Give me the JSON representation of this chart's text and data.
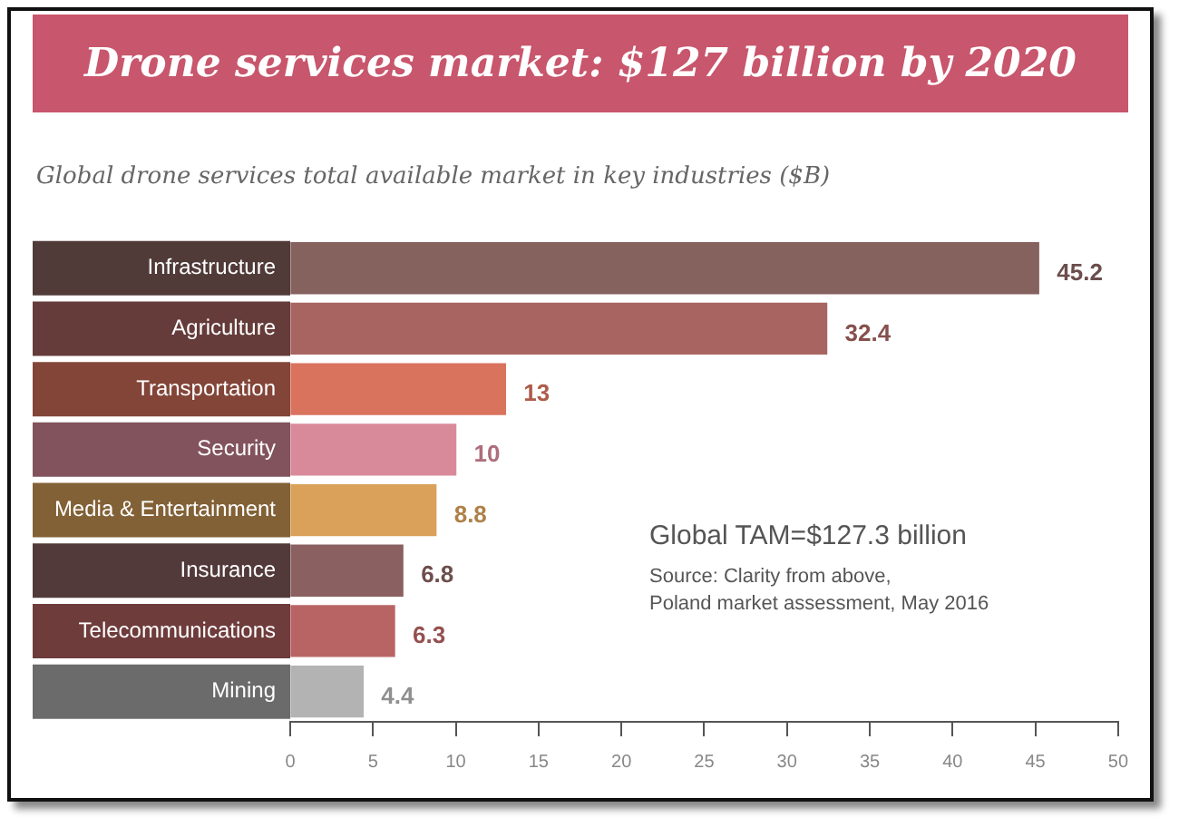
{
  "chart_data": {
    "type": "bar",
    "orientation": "horizontal",
    "title": "Drone services market: $127 billion by 2020",
    "subtitle": "Global drone services total available market in key industries ($B)",
    "categories": [
      "Infrastructure",
      "Agriculture",
      "Transportation",
      "Security",
      "Media & Entertainment",
      "Insurance",
      "Telecommunications",
      "Mining"
    ],
    "values": [
      45.2,
      32.4,
      13,
      10,
      8.8,
      6.8,
      6.3,
      4.4
    ],
    "colors": [
      "#86625f",
      "#a86460",
      "#d9735e",
      "#d98a9a",
      "#d9a15a",
      "#8a6160",
      "#b96464",
      "#b3b3b3"
    ],
    "xlim": [
      0,
      50
    ],
    "xticks": [
      0,
      5,
      10,
      15,
      20,
      25,
      30,
      35,
      40,
      45,
      50
    ],
    "data_labels": true,
    "grid": false,
    "legend": false,
    "annotations": [
      "Global TAM=$127.3 billion",
      "Source: Clarity from above,",
      "Poland market assessment, May 2016"
    ]
  }
}
